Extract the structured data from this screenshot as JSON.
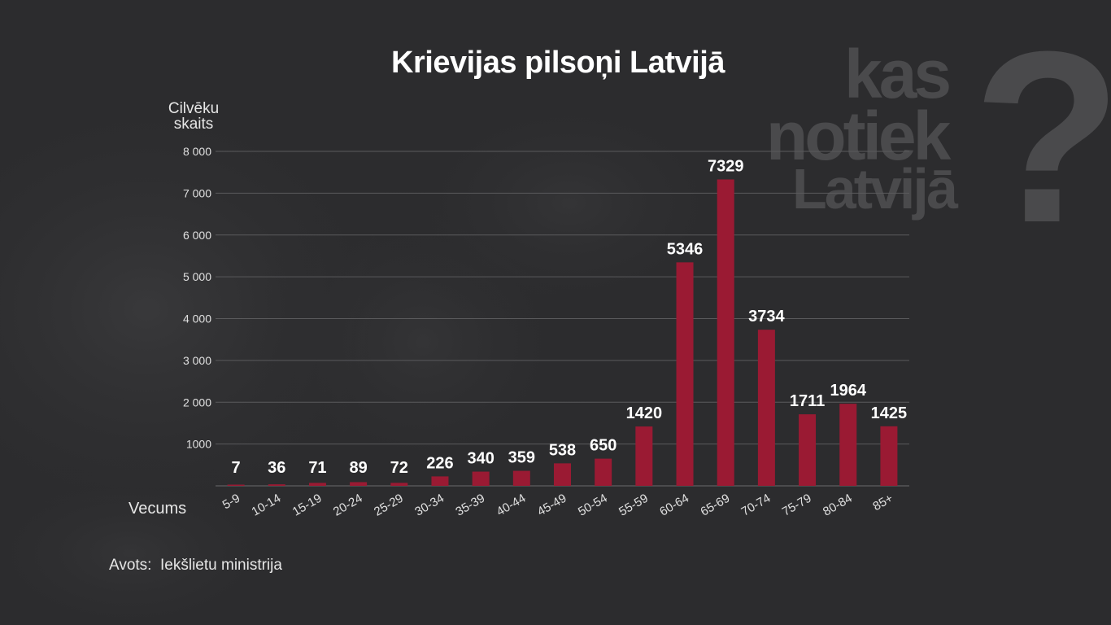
{
  "title": "Krievijas pilsoņi Latvijā",
  "source": "Avots:  Iekšlietu ministrija",
  "watermark": {
    "lines": [
      "kas",
      "notiek",
      "Latvijā"
    ],
    "mark": "?"
  },
  "colors": {
    "background": "#2d2d2f",
    "bar": "#9a1a33",
    "grid": "#5a5a5c",
    "text": "#ffffff",
    "axis_text": "#e0e0e0",
    "watermark": "#4a4a4c"
  },
  "chart_data": {
    "type": "bar",
    "title": "Krievijas pilsoņi Latvijā",
    "ylabel_lines": [
      "Cilvēku",
      "skaits"
    ],
    "xlabel": "Vecums",
    "categories": [
      "5-9",
      "10-14",
      "15-19",
      "20-24",
      "25-29",
      "30-34",
      "35-39",
      "40-44",
      "45-49",
      "50-54",
      "55-59",
      "60-64",
      "65-69",
      "70-74",
      "75-79",
      "80-84",
      "85+"
    ],
    "values": [
      7,
      36,
      71,
      89,
      72,
      226,
      340,
      359,
      538,
      650,
      1420,
      5346,
      7329,
      3734,
      1711,
      1964,
      1425
    ],
    "ylim": [
      0,
      8000
    ],
    "yticks": [
      1000,
      2000,
      3000,
      4000,
      5000,
      6000,
      7000,
      8000
    ],
    "ytick_labels": [
      "1000",
      "2 000",
      "3 000",
      "4 000",
      "5 000",
      "6 000",
      "7 000",
      "8 000"
    ],
    "grid": true,
    "legend": false
  }
}
